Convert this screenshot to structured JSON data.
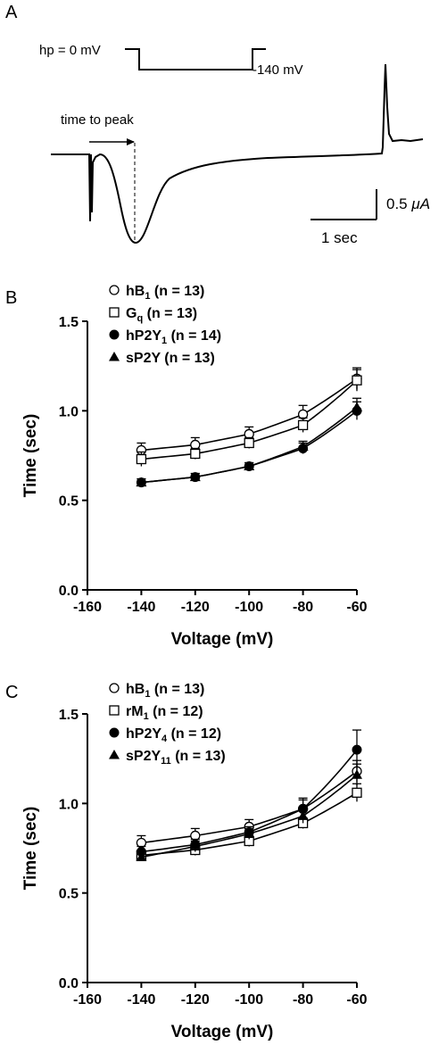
{
  "panel_labels": {
    "a": "A",
    "b": "B",
    "c": "C"
  },
  "trace": {
    "hp_label": "hp = 0 mV",
    "step_label": "-140 mV",
    "time_to_peak_label": "time to peak",
    "scale_y_label": "0.5",
    "scale_y_unit": "μA",
    "scale_x_label": "1 sec"
  },
  "chart_data": [
    {
      "id": "B",
      "type": "scatter",
      "title": "",
      "xlabel": "Voltage (mV)",
      "ylabel": "Time (sec)",
      "xlim": [
        -160,
        -60
      ],
      "ylim": [
        0.0,
        1.5
      ],
      "xticks": [
        -160,
        -140,
        -120,
        -100,
        -80,
        -60
      ],
      "xtick_labels": [
        "-160",
        "-140",
        "-120",
        "-100",
        "-80",
        "-60"
      ],
      "yticks": [
        0.0,
        0.5,
        1.0,
        1.5
      ],
      "ytick_labels": [
        "0.0",
        "0.5",
        "1.0",
        "1.5"
      ],
      "legend_position": "top-left",
      "x": [
        -140,
        -120,
        -100,
        -80,
        -60
      ],
      "series": [
        {
          "name": "hB",
          "sub": "1",
          "name_end": " (n = 13)",
          "marker": "circle-open",
          "values": [
            0.78,
            0.81,
            0.87,
            0.98,
            1.18
          ],
          "errors": [
            0.04,
            0.04,
            0.04,
            0.05,
            0.06
          ]
        },
        {
          "name": "G",
          "sub": "q",
          "name_end": " (n = 13)",
          "marker": "square-open",
          "values": [
            0.73,
            0.76,
            0.82,
            0.92,
            1.17
          ],
          "errors": [
            0.04,
            0.03,
            0.03,
            0.04,
            0.06
          ]
        },
        {
          "name": "hP2Y",
          "sub": "1",
          "name_end": " (n = 14)",
          "marker": "circle-filled",
          "values": [
            0.6,
            0.63,
            0.69,
            0.79,
            1.0
          ],
          "errors": [
            0.02,
            0.02,
            0.02,
            0.03,
            0.05
          ]
        },
        {
          "name": "sP2Y",
          "sub": "",
          "name_end": " (n = 13)",
          "marker": "triangle-filled",
          "values": [
            0.6,
            0.63,
            0.69,
            0.8,
            1.02
          ],
          "errors": [
            0.02,
            0.02,
            0.02,
            0.03,
            0.05
          ]
        }
      ]
    },
    {
      "id": "C",
      "type": "scatter",
      "title": "",
      "xlabel": "Voltage (mV)",
      "ylabel": "Time (sec)",
      "xlim": [
        -160,
        -60
      ],
      "ylim": [
        0.0,
        1.5
      ],
      "xticks": [
        -160,
        -140,
        -120,
        -100,
        -80,
        -60
      ],
      "xtick_labels": [
        "-160",
        "-140",
        "-120",
        "-100",
        "-80",
        "-60"
      ],
      "yticks": [
        0.0,
        0.5,
        1.0,
        1.5
      ],
      "ytick_labels": [
        "0.0",
        "0.5",
        "1.0",
        "1.5"
      ],
      "legend_position": "top-left",
      "x": [
        -140,
        -120,
        -100,
        -80,
        -60
      ],
      "series": [
        {
          "name": "hB",
          "sub": "1",
          "name_end": " (n = 13)",
          "marker": "circle-open",
          "values": [
            0.78,
            0.82,
            0.87,
            0.97,
            1.18
          ],
          "errors": [
            0.04,
            0.04,
            0.04,
            0.05,
            0.06
          ]
        },
        {
          "name": "rM",
          "sub": "1",
          "name_end": " (n = 12)",
          "marker": "square-open",
          "values": [
            0.71,
            0.74,
            0.79,
            0.89,
            1.06
          ],
          "errors": [
            0.03,
            0.03,
            0.03,
            0.03,
            0.05
          ]
        },
        {
          "name": "hP2Y",
          "sub": "4",
          "name_end": " (n = 12)",
          "marker": "circle-filled",
          "values": [
            0.73,
            0.77,
            0.84,
            0.97,
            1.3
          ],
          "errors": [
            0.03,
            0.03,
            0.03,
            0.06,
            0.11
          ]
        },
        {
          "name": "sP2Y",
          "sub": "11",
          "name_end": " (n = 13)",
          "marker": "triangle-filled",
          "values": [
            0.7,
            0.76,
            0.83,
            0.93,
            1.16
          ],
          "errors": [
            0.02,
            0.03,
            0.03,
            0.04,
            0.06
          ]
        }
      ]
    }
  ]
}
